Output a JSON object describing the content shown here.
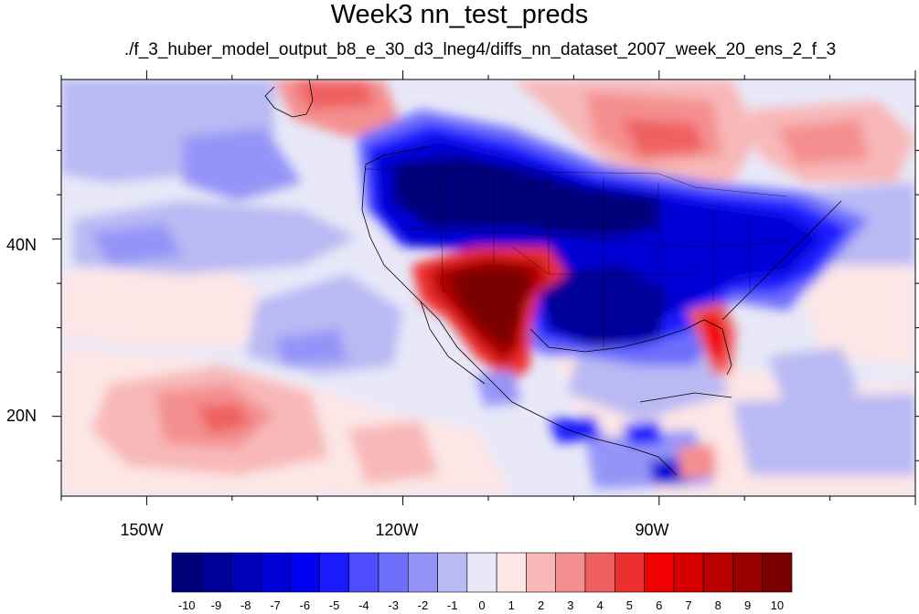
{
  "title": "Week3 nn_test_preds",
  "subtitle": "./f_3_huber_model_output_b8_e_30_d3_lneg4/diffs_nn_dataset_2007_week_20_ens_2_f_3",
  "map": {
    "lon_labels": [
      "150W",
      "120W",
      "90W"
    ],
    "lat_labels": [
      "40N",
      "20N"
    ],
    "lon_range": [
      -160,
      -60
    ],
    "lat_range": [
      11,
      58
    ]
  },
  "colorbar": {
    "labels": [
      "-10",
      "-9",
      "-8",
      "-7",
      "-6",
      "-5",
      "-4",
      "-3",
      "-2",
      "-1",
      "0",
      "1",
      "2",
      "3",
      "4",
      "5",
      "6",
      "7",
      "8",
      "9",
      "10"
    ],
    "colors": [
      "#00007a",
      "#000099",
      "#0000b8",
      "#0000d6",
      "#0000f0",
      "#1a1aff",
      "#4d4dff",
      "#6e6efc",
      "#9494f8",
      "#b9b9f4",
      "#e8e8f8",
      "#fde6e6",
      "#f8b8b8",
      "#f48f8f",
      "#ef6161",
      "#ec2f2f",
      "#f00000",
      "#d60000",
      "#b80000",
      "#990000",
      "#7a0000"
    ]
  }
}
